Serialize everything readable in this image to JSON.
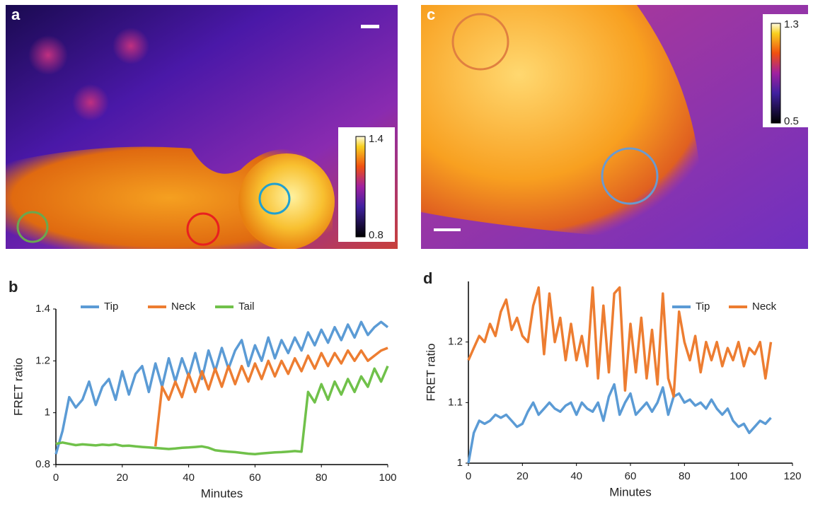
{
  "images": [
    {
      "label": "a",
      "colorbar": [
        0.8,
        1.4
      ]
    },
    {
      "label": "c",
      "colorbar": [
        0.5,
        1.3
      ]
    }
  ],
  "chart_data": [
    {
      "type": "line",
      "label": "b",
      "x_label": "Minutes",
      "y_label": "FRET ratio",
      "x": [
        0,
        2,
        4,
        6,
        8,
        10,
        12,
        14,
        16,
        18,
        20,
        22,
        24,
        26,
        28,
        30,
        32,
        34,
        36,
        38,
        40,
        42,
        44,
        46,
        48,
        50,
        52,
        54,
        56,
        58,
        60,
        62,
        64,
        66,
        68,
        70,
        72,
        74,
        76,
        78,
        80,
        82,
        84,
        86,
        88,
        90,
        92,
        94,
        96,
        98,
        100
      ],
      "series": [
        {
          "name": "Tip",
          "color": "#5b9bd5",
          "values": [
            0.84,
            0.93,
            1.06,
            1.02,
            1.05,
            1.12,
            1.03,
            1.1,
            1.13,
            1.05,
            1.16,
            1.07,
            1.15,
            1.18,
            1.08,
            1.19,
            1.1,
            1.21,
            1.12,
            1.21,
            1.14,
            1.23,
            1.13,
            1.24,
            1.16,
            1.25,
            1.17,
            1.24,
            1.28,
            1.18,
            1.26,
            1.2,
            1.29,
            1.21,
            1.28,
            1.23,
            1.29,
            1.24,
            1.31,
            1.26,
            1.32,
            1.27,
            1.33,
            1.28,
            1.34,
            1.29,
            1.35,
            1.3,
            1.33,
            1.35,
            1.33
          ]
        },
        {
          "name": "Neck",
          "color": "#ed7d31",
          "values": [
            null,
            null,
            null,
            null,
            null,
            null,
            null,
            null,
            null,
            null,
            null,
            null,
            null,
            null,
            null,
            0.87,
            1.1,
            1.05,
            1.12,
            1.06,
            1.15,
            1.08,
            1.16,
            1.09,
            1.17,
            1.1,
            1.18,
            1.11,
            1.18,
            1.12,
            1.19,
            1.13,
            1.2,
            1.14,
            1.2,
            1.15,
            1.21,
            1.16,
            1.22,
            1.17,
            1.23,
            1.18,
            1.23,
            1.19,
            1.24,
            1.2,
            1.24,
            1.2,
            1.22,
            1.24,
            1.25
          ]
        },
        {
          "name": "Tail",
          "color": "#70c14a",
          "values": [
            0.88,
            0.885,
            0.88,
            0.875,
            0.878,
            0.876,
            0.874,
            0.877,
            0.875,
            0.878,
            0.872,
            0.873,
            0.87,
            0.868,
            0.866,
            0.864,
            0.862,
            0.86,
            0.862,
            0.865,
            0.866,
            0.868,
            0.87,
            0.865,
            0.855,
            0.852,
            0.85,
            0.848,
            0.845,
            0.842,
            0.84,
            0.843,
            0.845,
            0.847,
            0.848,
            0.85,
            0.852,
            0.85,
            1.08,
            1.04,
            1.11,
            1.05,
            1.12,
            1.07,
            1.13,
            1.08,
            1.14,
            1.1,
            1.17,
            1.12,
            1.18
          ]
        }
      ],
      "xlim": [
        0,
        100
      ],
      "xticks": [
        0,
        20,
        40,
        60,
        80,
        100
      ],
      "ylim": [
        0.8,
        1.4
      ],
      "yticks": [
        0.8,
        1,
        1.2,
        1.4
      ],
      "grid": false,
      "legend": "top"
    },
    {
      "type": "line",
      "label": "d",
      "x_label": "Minutes",
      "y_label": "FRET ratio",
      "x": [
        0,
        2,
        4,
        6,
        8,
        10,
        12,
        14,
        16,
        18,
        20,
        22,
        24,
        26,
        28,
        30,
        32,
        34,
        36,
        38,
        40,
        42,
        44,
        46,
        48,
        50,
        52,
        54,
        56,
        58,
        60,
        62,
        64,
        66,
        68,
        70,
        72,
        74,
        76,
        78,
        80,
        82,
        84,
        86,
        88,
        90,
        92,
        94,
        96,
        98,
        100,
        102,
        104,
        106,
        108,
        110,
        112
      ],
      "series": [
        {
          "name": "Tip",
          "color": "#5b9bd5",
          "values": [
            1.0,
            1.05,
            1.07,
            1.065,
            1.07,
            1.08,
            1.075,
            1.08,
            1.07,
            1.06,
            1.065,
            1.085,
            1.1,
            1.08,
            1.09,
            1.1,
            1.09,
            1.085,
            1.095,
            1.1,
            1.08,
            1.1,
            1.09,
            1.085,
            1.1,
            1.07,
            1.11,
            1.13,
            1.08,
            1.1,
            1.115,
            1.08,
            1.09,
            1.1,
            1.085,
            1.1,
            1.125,
            1.08,
            1.11,
            1.115,
            1.1,
            1.105,
            1.095,
            1.1,
            1.09,
            1.105,
            1.09,
            1.08,
            1.09,
            1.07,
            1.06,
            1.065,
            1.05,
            1.06,
            1.07,
            1.065,
            1.075
          ]
        },
        {
          "name": "Neck",
          "color": "#ed7d31",
          "values": [
            1.17,
            1.19,
            1.21,
            1.2,
            1.23,
            1.21,
            1.25,
            1.27,
            1.22,
            1.24,
            1.21,
            1.2,
            1.26,
            1.29,
            1.18,
            1.28,
            1.2,
            1.24,
            1.17,
            1.23,
            1.17,
            1.21,
            1.16,
            1.29,
            1.14,
            1.26,
            1.15,
            1.28,
            1.29,
            1.12,
            1.23,
            1.15,
            1.24,
            1.14,
            1.22,
            1.13,
            1.28,
            1.14,
            1.11,
            1.25,
            1.2,
            1.17,
            1.21,
            1.15,
            1.2,
            1.17,
            1.2,
            1.16,
            1.19,
            1.17,
            1.2,
            1.16,
            1.19,
            1.18,
            1.2,
            1.14,
            1.2
          ]
        }
      ],
      "xlim": [
        0,
        120
      ],
      "xticks": [
        0,
        20,
        40,
        60,
        80,
        100,
        120
      ],
      "ylim": [
        1,
        1.3
      ],
      "yticks": [
        1,
        1.1,
        1.2
      ],
      "grid": false,
      "legend": "top-right"
    }
  ]
}
